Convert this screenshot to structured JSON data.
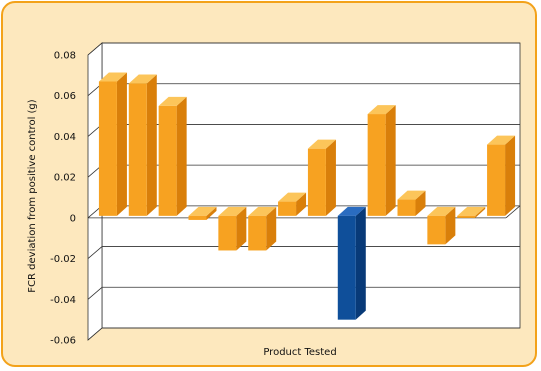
{
  "chart_data": {
    "type": "bar",
    "style": "3d-column",
    "title": "",
    "xlabel": "Product Tested",
    "ylabel": "FCR deviation from positive control (g)",
    "ylim": [
      -0.06,
      0.08
    ],
    "yticks": [
      -0.06,
      -0.04,
      -0.02,
      0,
      0.02,
      0.04,
      0.06,
      0.08
    ],
    "ytick_labels": [
      "-0.06",
      "-0.04",
      "-0.02",
      "0",
      "0.02",
      "0.04",
      "0.06",
      "0.08"
    ],
    "grid": true,
    "legend": "none",
    "values": [
      0.066,
      0.065,
      0.054,
      -0.002,
      -0.017,
      -0.017,
      0.007,
      0.033,
      -0.051,
      0.05,
      0.008,
      -0.014,
      -0.001,
      0.035
    ],
    "highlight_index": 8,
    "colors": {
      "bar_front": "#f7a221",
      "bar_top": "#fcc55a",
      "bar_side": "#d97f0a",
      "highlight_front": "#0f4f9a",
      "highlight_top": "#2a6cc0",
      "highlight_side": "#083a78",
      "frame_border": "#f3a21a",
      "frame_fill": "#fde8be",
      "plot_fill": "#ffffff",
      "grid": "#333333"
    }
  }
}
